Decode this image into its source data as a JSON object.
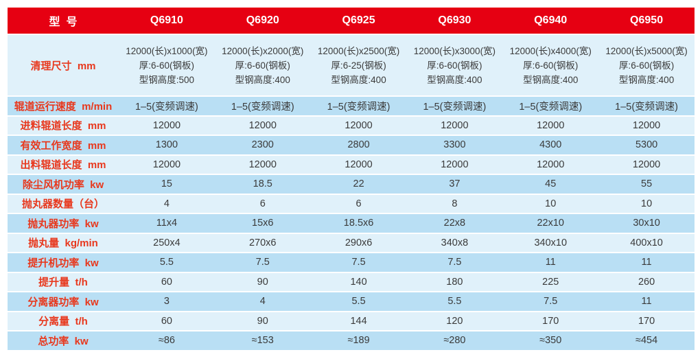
{
  "colors": {
    "header_bg": "#e60012",
    "header_text": "#ffffff",
    "label_text": "#e8381d",
    "value_text": "#3a3a3a",
    "row_light": "#e0f1fa",
    "row_dark": "#b9dff4",
    "page_bg": "#ffffff"
  },
  "table": {
    "header": {
      "model_label": "型  号",
      "models": [
        "Q6910",
        "Q6920",
        "Q6925",
        "Q6930",
        "Q6940",
        "Q6950"
      ]
    },
    "rows": [
      {
        "label": "清理尺寸  mm",
        "values": [
          [
            "12000(长)x1000(宽)",
            "厚:6-60(钢板)",
            "型钢高度:500"
          ],
          [
            "12000(长)x2000(宽)",
            "厚:6-60(钢板)",
            "型钢高度:400"
          ],
          [
            "12000(长)x2500(宽)",
            "厚:6-25(钢板)",
            "型钢高度:400"
          ],
          [
            "12000(长)x3000(宽)",
            "厚:6-60(钢板)",
            "型钢高度:400"
          ],
          [
            "12000(长)x4000(宽)",
            "厚:6-60(钢板)",
            "型钢高度:400"
          ],
          [
            "12000(长)x5000(宽)",
            "厚:6-60(钢板)",
            "型钢高度:400"
          ]
        ]
      },
      {
        "label": "辊道运行速度  m/min",
        "values": [
          "1–5(变频调速)",
          "1–5(变频调速)",
          "1–5(变频调速)",
          "1–5(变频调速)",
          "1–5(变频调速)",
          "1–5(变频调速)"
        ]
      },
      {
        "label": "进料辊道长度  mm",
        "values": [
          "12000",
          "12000",
          "12000",
          "12000",
          "12000",
          "12000"
        ]
      },
      {
        "label": "有效工作宽度  mm",
        "values": [
          "1300",
          "2300",
          "2800",
          "3300",
          "4300",
          "5300"
        ]
      },
      {
        "label": "出料辊道长度  mm",
        "values": [
          "12000",
          "12000",
          "12000",
          "12000",
          "12000",
          "12000"
        ]
      },
      {
        "label": "除尘风机功率  kw",
        "values": [
          "15",
          "18.5",
          "22",
          "37",
          "45",
          "55"
        ]
      },
      {
        "label": "抛丸器数量（台）",
        "values": [
          "4",
          "6",
          "6",
          "8",
          "10",
          "10"
        ]
      },
      {
        "label": "抛丸器功率  kw",
        "values": [
          "11x4",
          "15x6",
          "18.5x6",
          "22x8",
          "22x10",
          "30x10"
        ]
      },
      {
        "label": "抛丸量  kg/min",
        "values": [
          "250x4",
          "270x6",
          "290x6",
          "340x8",
          "340x10",
          "400x10"
        ]
      },
      {
        "label": "提升机功率  kw",
        "values": [
          "5.5",
          "7.5",
          "7.5",
          "7.5",
          "11",
          "11"
        ]
      },
      {
        "label": "提升量  t/h",
        "values": [
          "60",
          "90",
          "140",
          "180",
          "225",
          "260"
        ]
      },
      {
        "label": "分离器功率  kw",
        "values": [
          "3",
          "4",
          "5.5",
          "5.5",
          "7.5",
          "11"
        ]
      },
      {
        "label": "分离量  t/h",
        "values": [
          "60",
          "90",
          "144",
          "120",
          "170",
          "170"
        ]
      },
      {
        "label": "总功率  kw",
        "values": [
          "≈86",
          "≈153",
          "≈189",
          "≈280",
          "≈350",
          "≈454"
        ]
      }
    ]
  }
}
